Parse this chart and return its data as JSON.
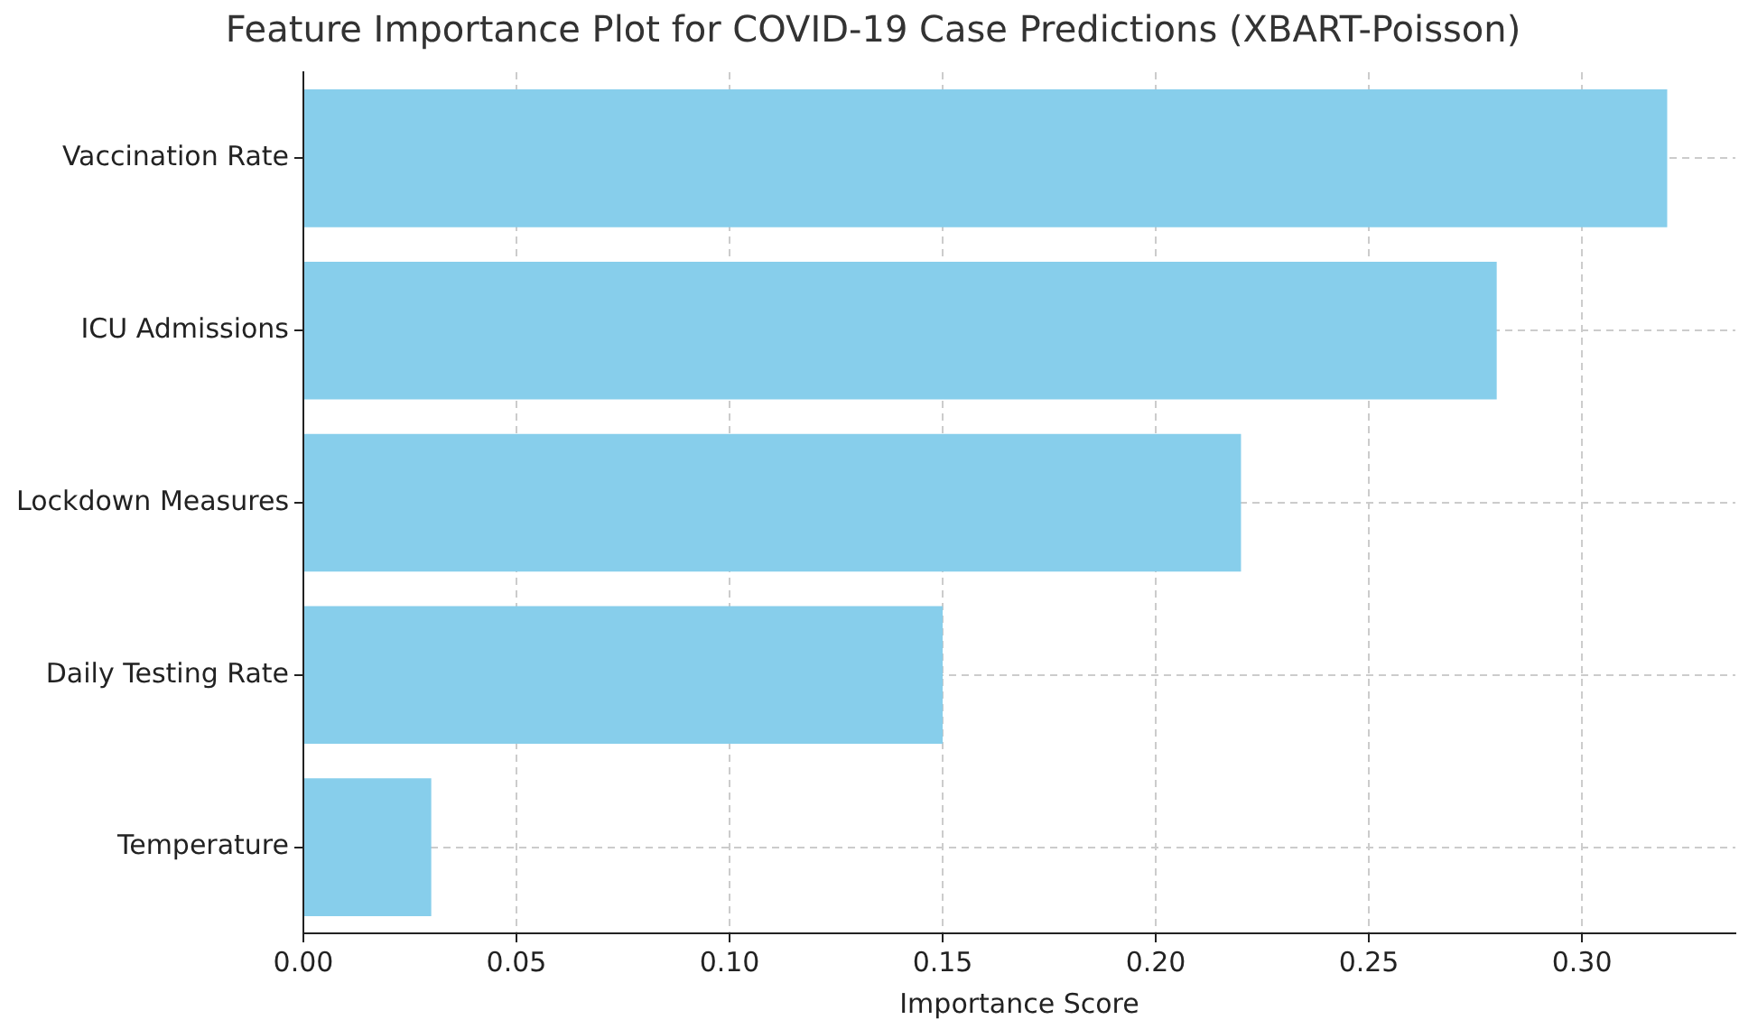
{
  "chart_data": {
    "type": "bar",
    "orientation": "horizontal",
    "title": "Feature Importance Plot for COVID-19 Case Predictions (XBART-Poisson)",
    "xlabel": "Importance Score",
    "categories": [
      "Vaccination Rate",
      "ICU Admissions",
      "Lockdown Measures",
      "Daily Testing Rate",
      "Temperature"
    ],
    "values": [
      0.32,
      0.28,
      0.22,
      0.15,
      0.03
    ],
    "color": "#87ceeb",
    "xlim": [
      0,
      0.336
    ],
    "xticks": [
      {
        "value": 0,
        "label": "0.00"
      },
      {
        "value": 0.05,
        "label": "0.05"
      },
      {
        "value": 0.1,
        "label": "0.10"
      },
      {
        "value": 0.15,
        "label": "0.15"
      },
      {
        "value": 0.2,
        "label": "0.20"
      },
      {
        "value": 0.25,
        "label": "0.25"
      },
      {
        "value": 0.3,
        "label": "0.30"
      }
    ],
    "grid": true
  }
}
